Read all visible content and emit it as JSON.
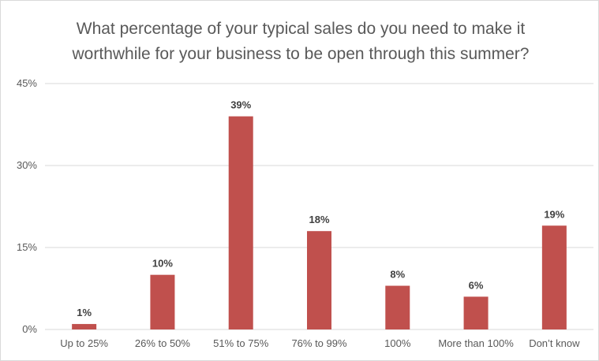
{
  "chart_data": {
    "type": "bar",
    "title": [
      "What percentage of your typical sales do you need to make it",
      "worthwhile for your business to be open through this summer?"
    ],
    "categories": [
      "Up to 25%",
      "26% to 50%",
      "51% to 75%",
      "76% to 99%",
      "100%",
      "More than 100%",
      "Don’t know"
    ],
    "values": [
      1,
      10,
      39,
      18,
      8,
      6,
      19
    ],
    "value_labels": [
      "1%",
      "10%",
      "39%",
      "18%",
      "8%",
      "6%",
      "19%"
    ],
    "y_ticks": [
      0,
      15,
      30,
      45
    ],
    "y_tick_labels": [
      "0%",
      "15%",
      "30%",
      "45%"
    ],
    "ylim": [
      0,
      45
    ],
    "grid": true,
    "bar_color": "#c0504d",
    "grid_color": "#d9d9d9"
  }
}
